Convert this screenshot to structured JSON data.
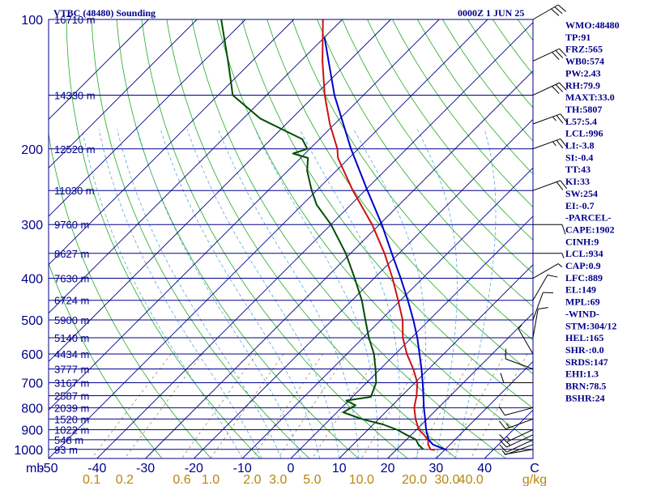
{
  "header": {
    "station": "VTBC (48480) Sounding",
    "time": "0000Z  1 JUN 25"
  },
  "chart_data": {
    "type": "line",
    "title": "VTBC (48480) Sounding",
    "subtitle": "0000Z  1 JUN 25",
    "xlabel_unit": "C",
    "ylabel_unit": "mb",
    "mixing_ratio_unit": "g/kg",
    "pressure_ticks": [
      100,
      200,
      300,
      400,
      500,
      600,
      700,
      800,
      900,
      1000
    ],
    "temperature_ticks": [
      "-50",
      "-40",
      "-30",
      "-20",
      "-10",
      "0",
      "10",
      "20",
      "30",
      "40"
    ],
    "mixing_ratio_ticks": [
      "0.1",
      "0.2",
      "0.6",
      "1.0",
      "2.0",
      "3.0",
      "5.0",
      "10.0",
      "20.0",
      "30.0",
      "40.0"
    ],
    "mixing_ratio_values": [
      0.1,
      0.2,
      0.6,
      1.0,
      2.0,
      3.0,
      5.0,
      10.0,
      20.0,
      30.0,
      40.0
    ],
    "height_levels": [
      {
        "p": 100,
        "label": "16710 m"
      },
      {
        "p": 150,
        "label": "14330 m"
      },
      {
        "p": 200,
        "label": "12520 m"
      },
      {
        "p": 250,
        "label": "11030 m"
      },
      {
        "p": 300,
        "label": "9760 m"
      },
      {
        "p": 350,
        "label": "8627 m"
      },
      {
        "p": 400,
        "label": "7630 m"
      },
      {
        "p": 450,
        "label": "6724 m"
      },
      {
        "p": 500,
        "label": "5900 m"
      },
      {
        "p": 550,
        "label": "5140 m"
      },
      {
        "p": 600,
        "label": "4434 m"
      },
      {
        "p": 650,
        "label": "3777 m"
      },
      {
        "p": 700,
        "label": "3167 m"
      },
      {
        "p": 750,
        "label": "2587 m"
      },
      {
        "p": 800,
        "label": "2039 m"
      },
      {
        "p": 850,
        "label": "1520 m"
      },
      {
        "p": 900,
        "label": "1022 m"
      },
      {
        "p": 950,
        "label": "548 m"
      },
      {
        "p": 1000,
        "label": "93 m"
      }
    ],
    "pressure_range": [
      100,
      1050
    ],
    "temperature_range_at_1050mb": [
      -50,
      50
    ],
    "series": [
      {
        "name": "temperature",
        "color": "#cc1111",
        "points": [
          {
            "p": 1004,
            "t": 28.0
          },
          {
            "p": 1000,
            "t": 27.0
          },
          {
            "p": 975,
            "t": 25.5
          },
          {
            "p": 950,
            "t": 24.5
          },
          {
            "p": 925,
            "t": 22.6
          },
          {
            "p": 900,
            "t": 20.5
          },
          {
            "p": 850,
            "t": 17.6
          },
          {
            "p": 800,
            "t": 15.0
          },
          {
            "p": 750,
            "t": 13.0
          },
          {
            "p": 700,
            "t": 10.5
          },
          {
            "p": 650,
            "t": 6.8
          },
          {
            "p": 600,
            "t": 2.4
          },
          {
            "p": 550,
            "t": -1.8
          },
          {
            "p": 500,
            "t": -5.5
          },
          {
            "p": 450,
            "t": -10.5
          },
          {
            "p": 400,
            "t": -16.2
          },
          {
            "p": 350,
            "t": -23.0
          },
          {
            "p": 300,
            "t": -31.5
          },
          {
            "p": 250,
            "t": -42.5
          },
          {
            "p": 210,
            "t": -52.3
          },
          {
            "p": 200,
            "t": -54.3
          },
          {
            "p": 175,
            "t": -61.0
          },
          {
            "p": 150,
            "t": -68.0
          },
          {
            "p": 125,
            "t": -75.5
          },
          {
            "p": 100,
            "t": -84.0
          }
        ]
      },
      {
        "name": "dewpoint",
        "color": "#004d00",
        "points": [
          {
            "p": 1000,
            "t": 25.5
          },
          {
            "p": 975,
            "t": 23.5
          },
          {
            "p": 950,
            "t": 22.0
          },
          {
            "p": 925,
            "t": 19.0
          },
          {
            "p": 900,
            "t": 16.0
          },
          {
            "p": 875,
            "t": 12.0
          },
          {
            "p": 850,
            "t": 6.5
          },
          {
            "p": 820,
            "t": 1.3
          },
          {
            "p": 790,
            "t": 2.4
          },
          {
            "p": 770,
            "t": -0.5
          },
          {
            "p": 755,
            "t": 3.8
          },
          {
            "p": 700,
            "t": 2.0
          },
          {
            "p": 650,
            "t": -1.0
          },
          {
            "p": 600,
            "t": -4.4
          },
          {
            "p": 550,
            "t": -8.8
          },
          {
            "p": 500,
            "t": -13.2
          },
          {
            "p": 450,
            "t": -18.0
          },
          {
            "p": 400,
            "t": -24.0
          },
          {
            "p": 350,
            "t": -31.0
          },
          {
            "p": 300,
            "t": -40.0
          },
          {
            "p": 270,
            "t": -47.0
          },
          {
            "p": 250,
            "t": -51.0
          },
          {
            "p": 225,
            "t": -56.0
          },
          {
            "p": 210,
            "t": -58.5
          },
          {
            "p": 205,
            "t": -62.5
          },
          {
            "p": 200,
            "t": -60.5
          },
          {
            "p": 190,
            "t": -63.5
          },
          {
            "p": 170,
            "t": -76.5
          },
          {
            "p": 150,
            "t": -87.0
          },
          {
            "p": 140,
            "t": -90.0
          },
          {
            "p": 125,
            "t": -95.0
          },
          {
            "p": 100,
            "t": -105.0
          }
        ]
      },
      {
        "name": "parcel",
        "color": "#0000cc",
        "points": [
          {
            "p": 1004,
            "t": 30.5
          },
          {
            "p": 975,
            "t": 26.5
          },
          {
            "p": 950,
            "t": 24.6
          },
          {
            "p": 925,
            "t": 23.3
          },
          {
            "p": 900,
            "t": 22.0
          },
          {
            "p": 850,
            "t": 19.6
          },
          {
            "p": 800,
            "t": 17.0
          },
          {
            "p": 750,
            "t": 14.4
          },
          {
            "p": 700,
            "t": 11.6
          },
          {
            "p": 650,
            "t": 8.5
          },
          {
            "p": 600,
            "t": 5.0
          },
          {
            "p": 550,
            "t": 1.2
          },
          {
            "p": 500,
            "t": -3.3
          },
          {
            "p": 450,
            "t": -8.5
          },
          {
            "p": 400,
            "t": -14.5
          },
          {
            "p": 350,
            "t": -21.5
          },
          {
            "p": 300,
            "t": -29.5
          },
          {
            "p": 250,
            "t": -39.5
          },
          {
            "p": 200,
            "t": -51.5
          },
          {
            "p": 150,
            "t": -66.0
          },
          {
            "p": 110,
            "t": -80.0
          }
        ]
      }
    ],
    "winds": [
      {
        "p": 1000,
        "dir": 260,
        "spd": 3
      },
      {
        "p": 975,
        "dir": 250,
        "spd": 8
      },
      {
        "p": 950,
        "dir": 245,
        "spd": 12
      },
      {
        "p": 925,
        "dir": 245,
        "spd": 15
      },
      {
        "p": 900,
        "dir": 245,
        "spd": 15
      },
      {
        "p": 850,
        "dir": 250,
        "spd": 15
      },
      {
        "p": 800,
        "dir": 255,
        "spd": 12
      },
      {
        "p": 700,
        "dir": 270,
        "spd": 10
      },
      {
        "p": 650,
        "dir": 290,
        "spd": 10
      },
      {
        "p": 600,
        "dir": 330,
        "spd": 5
      },
      {
        "p": 550,
        "dir": 10,
        "spd": 10
      },
      {
        "p": 500,
        "dir": 20,
        "spd": 10
      },
      {
        "p": 450,
        "dir": 30,
        "spd": 10
      },
      {
        "p": 400,
        "dir": 60,
        "spd": 5
      },
      {
        "p": 350,
        "dir": 90,
        "spd": 5
      },
      {
        "p": 300,
        "dir": 90,
        "spd": 10
      },
      {
        "p": 250,
        "dir": 70,
        "spd": 20
      },
      {
        "p": 200,
        "dir": 70,
        "spd": 25
      },
      {
        "p": 175,
        "dir": 70,
        "spd": 25
      },
      {
        "p": 150,
        "dir": 65,
        "spd": 30
      },
      {
        "p": 125,
        "dir": 65,
        "spd": 30
      },
      {
        "p": 100,
        "dir": 60,
        "spd": 30
      }
    ]
  },
  "indices": [
    "WMO:48480",
    "TP:91",
    "FRZ:565",
    "WB0:574",
    "PW:2.43",
    "RH:79.9",
    "MAXT:33.0",
    "TH:5807",
    "L57:5.4",
    "LCL:996",
    "LI:-3.8",
    "SI:-0.4",
    "TT:43",
    "KI:33",
    "SW:254",
    "EI:-0.7",
    "-PARCEL-",
    "CAPE:1902",
    "CINH:9",
    "LCL:934",
    "CAP:0.9",
    "LFC:889",
    "EL:149",
    "MPL:69",
    "-WIND-",
    "STM:304/12",
    "HEL:165",
    "SHR-:0.0",
    "SRDS:147",
    "EHI:1.3",
    "BRN:78.5",
    "BSHR:24"
  ],
  "colors": {
    "frame": "#00008b",
    "isotherm": "#00008b",
    "dry_adiabat": "#22aa22",
    "moist_adiabat": "#55aadd",
    "mixing_ratio": "#8b7d3b",
    "mixing_label": "#b8860b"
  }
}
